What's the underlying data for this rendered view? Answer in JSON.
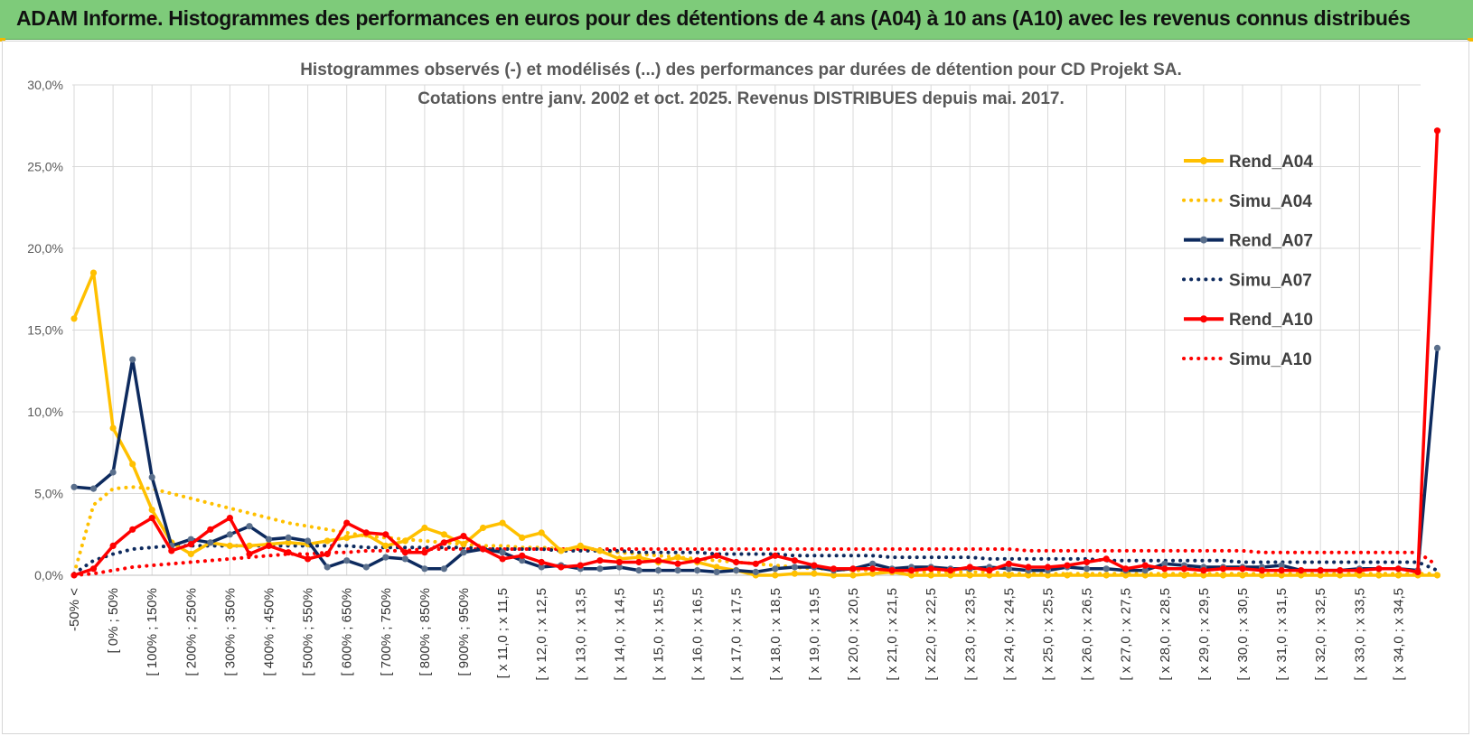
{
  "banner": {
    "title": "ADAM Informe. Histogrammes des performances en euros pour des détentions de 4 ans (A04) à 10 ans (A10) avec les revenus connus distribués"
  },
  "colors": {
    "banner_bg": "#7ecb7a",
    "a04": "#ffc000",
    "a07": "#0d2a5e",
    "a07_marker": "#5a6f8c",
    "a10": "#ff0000",
    "grid": "#d9d9d9"
  },
  "chart_data": {
    "type": "line",
    "title_lines": [
      "Histogrammes observés (-) et modélisés (...) des performances par durées de détention pour CD Projekt SA.",
      "Cotations entre janv. 2002 et oct. 2025.  Revenus DISTRIBUES depuis mai. 2017."
    ],
    "ylim": [
      0,
      30
    ],
    "y_ticks": [
      "0,0%",
      "5,0%",
      "10,0%",
      "15,0%",
      "20,0%",
      "25,0%",
      "30,0%"
    ],
    "grid": true,
    "legend_position": "right",
    "x_tick_labels": [
      "-50% <",
      "[ 0% ; 50%",
      "[ 100% ; 150%",
      "[ 200% ; 250%",
      "[ 300% ; 350%",
      "[ 400% ; 450%",
      "[ 500% ; 550%",
      "[ 600% ; 650%",
      "[ 700% ; 750%",
      "[ 800% ; 850%",
      "[ 900% ; 950%",
      "[ x 11,0 ; x 11,5",
      "[ x 12,0 ; x 12,5",
      "[ x 13,0 ; x 13,5",
      "[ x 14,0 ; x 14,5",
      "[ x 15,0 ; x 15,5",
      "[ x 16,0 ; x 16,5",
      "[ x 17,0 ; x 17,5",
      "[ x 18,0 ; x 18,5",
      "[ x 19,0 ; x 19,5",
      "[ x 20,0 ; x 20,5",
      "[ x 21,0 ; x 21,5",
      "[ x 22,0 ; x 22,5",
      "[ x 23,0 ; x 23,5",
      "[ x 24,0 ; x 24,5",
      "[ x 25,0 ; x 25,5",
      "[ x 26,0 ; x 26,5",
      "[ x 27,0 ; x 27,5",
      "[ x 28,0 ; x 28,5",
      "[ x 29,0 ; x 29,5",
      "[ x 30,0 ; x 30,5",
      "[ x 31,0 ; x 31,5",
      "[ x 32,0 ; x 32,5",
      "[ x 33,0 ; x 33,5",
      "[ x 34,0 ; x 34,5"
    ],
    "series": [
      {
        "name": "Rend_A04",
        "style": "solid",
        "color": "#ffc000",
        "values": [
          15.7,
          18.5,
          9.0,
          6.8,
          4.0,
          2.0,
          1.3,
          2.0,
          1.8,
          1.8,
          1.9,
          2.0,
          1.9,
          2.1,
          2.3,
          2.5,
          1.8,
          2.1,
          2.9,
          2.5,
          1.9,
          2.9,
          3.2,
          2.3,
          2.6,
          1.5,
          1.8,
          1.5,
          1.0,
          1.1,
          0.8,
          1.1,
          0.8,
          0.5,
          0.3,
          0.0,
          0.0,
          0.1,
          0.1,
          0.0,
          0.0,
          0.1,
          0.2,
          0.0,
          0.0,
          0.0,
          0.0,
          0.0,
          0.0,
          0.0,
          0.0,
          0.0,
          0.0,
          0.0,
          0.0,
          0.0,
          0.0,
          0.0,
          0.0,
          0.0,
          0.0,
          0.0,
          0.0,
          0.0,
          0.0,
          0.0,
          0.0,
          0.0,
          0.0,
          0.0,
          0.0
        ]
      },
      {
        "name": "Simu_A04",
        "style": "dotted",
        "color": "#ffc000",
        "values": [
          0.1,
          4.3,
          5.3,
          5.4,
          5.3,
          5.0,
          4.7,
          4.4,
          4.1,
          3.8,
          3.5,
          3.2,
          3.0,
          2.8,
          2.6,
          2.4,
          2.3,
          2.2,
          2.1,
          2.0,
          1.9,
          1.8,
          1.8,
          1.7,
          1.7,
          1.6,
          1.6,
          1.5,
          1.4,
          1.3,
          1.2,
          1.1,
          1.0,
          0.9,
          0.8,
          0.7,
          0.6,
          0.5,
          0.4,
          0.4,
          0.3,
          0.3,
          0.3,
          0.2,
          0.2,
          0.2,
          0.2,
          0.2,
          0.1,
          0.1,
          0.1,
          0.1,
          0.1,
          0.1,
          0.1,
          0.1,
          0.1,
          0.1,
          0.1,
          0.1,
          0.1,
          0.1,
          0.1,
          0.1,
          0.1,
          0.1,
          0.1,
          0.1,
          0.1,
          0.1,
          0.1
        ]
      },
      {
        "name": "Rend_A07",
        "style": "solid",
        "color": "#0d2a5e",
        "values": [
          5.4,
          5.3,
          6.3,
          13.2,
          6.0,
          1.8,
          2.2,
          2.0,
          2.5,
          3.0,
          2.2,
          2.3,
          2.1,
          0.5,
          0.9,
          0.5,
          1.1,
          1.0,
          0.4,
          0.4,
          1.4,
          1.6,
          1.4,
          0.9,
          0.5,
          0.6,
          0.4,
          0.4,
          0.5,
          0.3,
          0.3,
          0.3,
          0.3,
          0.2,
          0.3,
          0.2,
          0.4,
          0.5,
          0.5,
          0.3,
          0.4,
          0.7,
          0.4,
          0.5,
          0.5,
          0.4,
          0.4,
          0.5,
          0.4,
          0.3,
          0.3,
          0.5,
          0.4,
          0.4,
          0.3,
          0.3,
          0.7,
          0.6,
          0.5,
          0.5,
          0.5,
          0.5,
          0.6,
          0.3,
          0.3,
          0.3,
          0.4,
          0.4,
          0.4,
          0.3,
          13.9
        ]
      },
      {
        "name": "Simu_A07",
        "style": "dotted",
        "color": "#0d2a5e",
        "values": [
          0.1,
          0.9,
          1.3,
          1.6,
          1.7,
          1.8,
          1.8,
          1.8,
          1.8,
          1.8,
          1.8,
          1.8,
          1.8,
          1.8,
          1.8,
          1.7,
          1.7,
          1.7,
          1.7,
          1.7,
          1.7,
          1.6,
          1.6,
          1.6,
          1.6,
          1.5,
          1.5,
          1.5,
          1.5,
          1.4,
          1.4,
          1.4,
          1.4,
          1.3,
          1.3,
          1.3,
          1.3,
          1.2,
          1.2,
          1.2,
          1.2,
          1.2,
          1.1,
          1.1,
          1.1,
          1.1,
          1.1,
          1.0,
          1.0,
          1.0,
          1.0,
          1.0,
          1.0,
          0.9,
          0.9,
          0.9,
          0.9,
          0.9,
          0.9,
          0.9,
          0.8,
          0.8,
          0.8,
          0.8,
          0.8,
          0.8,
          0.8,
          0.8,
          0.8,
          0.8,
          0.3
        ]
      },
      {
        "name": "Rend_A10",
        "style": "solid",
        "color": "#ff0000",
        "values": [
          0.0,
          0.4,
          1.8,
          2.8,
          3.5,
          1.5,
          1.9,
          2.8,
          3.5,
          1.3,
          1.8,
          1.4,
          1.0,
          1.3,
          3.2,
          2.6,
          2.5,
          1.4,
          1.4,
          2.0,
          2.4,
          1.6,
          1.0,
          1.2,
          0.8,
          0.5,
          0.6,
          0.9,
          0.8,
          0.8,
          0.9,
          0.7,
          0.9,
          1.2,
          0.8,
          0.7,
          1.2,
          0.9,
          0.6,
          0.4,
          0.4,
          0.4,
          0.3,
          0.3,
          0.4,
          0.3,
          0.5,
          0.3,
          0.7,
          0.5,
          0.5,
          0.6,
          0.8,
          1.0,
          0.4,
          0.6,
          0.4,
          0.4,
          0.3,
          0.4,
          0.4,
          0.3,
          0.3,
          0.3,
          0.3,
          0.3,
          0.3,
          0.4,
          0.4,
          0.2,
          27.2
        ]
      },
      {
        "name": "Simu_A10",
        "style": "dotted",
        "color": "#ff0000",
        "values": [
          0.0,
          0.1,
          0.3,
          0.5,
          0.6,
          0.7,
          0.8,
          0.9,
          1.0,
          1.1,
          1.2,
          1.3,
          1.3,
          1.4,
          1.4,
          1.5,
          1.5,
          1.5,
          1.6,
          1.6,
          1.6,
          1.6,
          1.6,
          1.6,
          1.6,
          1.6,
          1.6,
          1.6,
          1.6,
          1.6,
          1.6,
          1.6,
          1.6,
          1.6,
          1.6,
          1.6,
          1.6,
          1.6,
          1.6,
          1.6,
          1.6,
          1.6,
          1.6,
          1.6,
          1.6,
          1.6,
          1.6,
          1.6,
          1.6,
          1.5,
          1.5,
          1.5,
          1.5,
          1.5,
          1.5,
          1.5,
          1.5,
          1.5,
          1.5,
          1.5,
          1.5,
          1.4,
          1.4,
          1.4,
          1.4,
          1.4,
          1.4,
          1.4,
          1.4,
          1.4,
          0.6
        ]
      }
    ]
  }
}
